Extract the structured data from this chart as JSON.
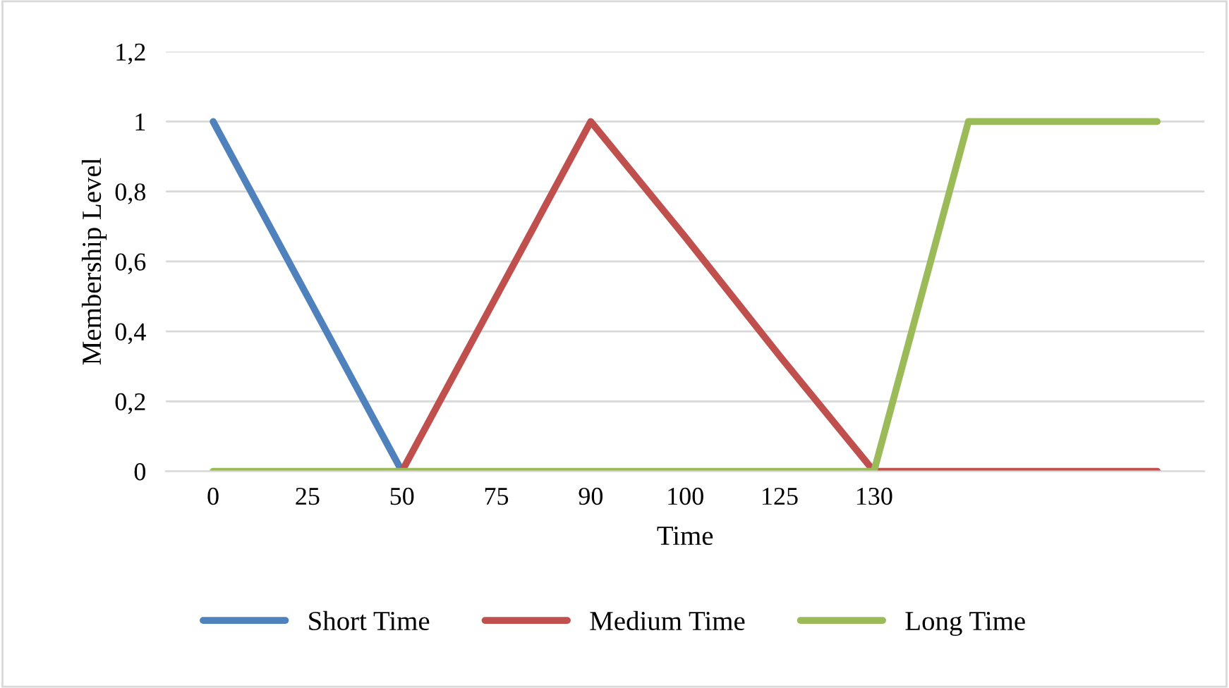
{
  "chart_data": {
    "type": "line",
    "xlabel": "Time",
    "ylabel": "Membership Level",
    "categories": [
      "0",
      "25",
      "50",
      "75",
      "90",
      "100",
      "125",
      "130",
      null,
      null,
      null
    ],
    "series": [
      {
        "name": "Short Time",
        "color": "#4f81bd",
        "values": [
          1,
          0.5,
          0,
          null,
          null,
          null,
          null,
          null,
          null,
          null,
          null
        ]
      },
      {
        "name": "Medium Time",
        "color": "#c0504d",
        "values": [
          null,
          null,
          0,
          0.5,
          1,
          0.67,
          0.33,
          0,
          0,
          0,
          0
        ]
      },
      {
        "name": "Long Time",
        "color": "#9bbb59",
        "values": [
          0,
          0,
          0,
          0,
          0,
          0,
          0,
          0,
          1,
          1,
          1
        ]
      }
    ],
    "ylim": [
      0,
      1.2
    ],
    "yticks": [
      0,
      {
        "value": 0.2,
        "label": "0,2"
      },
      {
        "value": 0.4,
        "label": "0,4"
      },
      {
        "value": 0.6,
        "label": "0,6"
      },
      {
        "value": 0.8,
        "label": "0,8"
      },
      1,
      {
        "value": 1.2,
        "label": "1,2"
      }
    ],
    "grid": "y",
    "legend": "bottom",
    "marker": "none",
    "line_style": "solid"
  }
}
